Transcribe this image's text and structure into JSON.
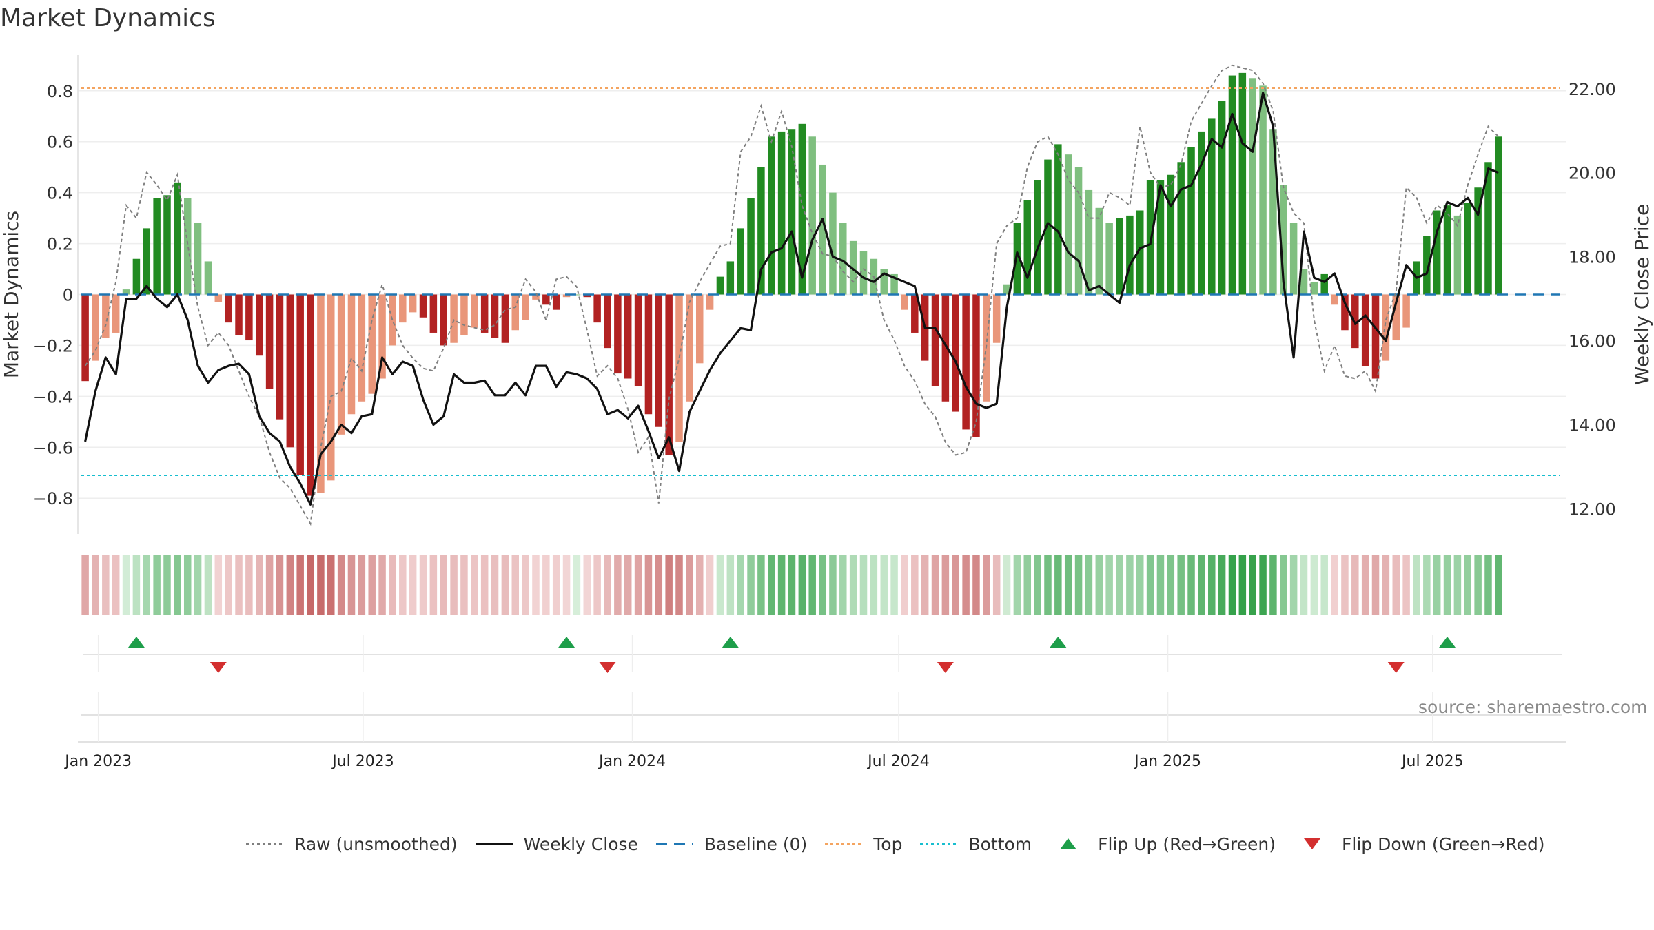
{
  "title": "Market Dynamics",
  "source": "source: sharemaestro.com",
  "chart_data": {
    "type": "bar",
    "title": "Market Dynamics",
    "ylabel": "Market Dynamics",
    "y2label": "Weekly Close Price",
    "ylim": [
      -0.94,
      0.94
    ],
    "y2lim": [
      11.4,
      22.8
    ],
    "yticks": [
      -0.8,
      -0.6,
      -0.4,
      -0.2,
      0,
      0.2,
      0.4,
      0.6,
      0.8
    ],
    "ytick_labels": [
      "−0.8",
      "−0.6",
      "−0.4",
      "−0.2",
      "0",
      "0.2",
      "0.4",
      "0.6",
      "0.8"
    ],
    "y2ticks": [
      12,
      14,
      16,
      18,
      20,
      22
    ],
    "y2tick_labels": [
      "12.00",
      "14.00",
      "16.00",
      "18.00",
      "20.00",
      "22.00"
    ],
    "xticks": [
      "2023-01-01",
      "2023-07-01",
      "2024-01-01",
      "2024-07-01",
      "2025-01-01",
      "2025-07-01"
    ],
    "xtick_labels": [
      "Jan 2023",
      "Jul 2023",
      "Jan 2024",
      "Jul 2024",
      "Jan 2025",
      "Jul 2025"
    ],
    "x_start": "2022-12-18",
    "x_end": "2025-09-30",
    "top_line": 0.81,
    "bottom_line": -0.71,
    "baseline": 0,
    "grid": true,
    "legend_position": "bottom",
    "weeks": [
      "2022-12-23",
      "2022-12-30",
      "2023-01-06",
      "2023-01-13",
      "2023-01-20",
      "2023-01-27",
      "2023-02-03",
      "2023-02-10",
      "2023-02-17",
      "2023-02-24",
      "2023-03-03",
      "2023-03-10",
      "2023-03-17",
      "2023-03-24",
      "2023-03-31",
      "2023-04-07",
      "2023-04-14",
      "2023-04-21",
      "2023-04-28",
      "2023-05-05",
      "2023-05-12",
      "2023-05-19",
      "2023-05-26",
      "2023-06-02",
      "2023-06-09",
      "2023-06-16",
      "2023-06-23",
      "2023-06-30",
      "2023-07-07",
      "2023-07-14",
      "2023-07-21",
      "2023-07-28",
      "2023-08-04",
      "2023-08-11",
      "2023-08-18",
      "2023-08-25",
      "2023-09-01",
      "2023-09-08",
      "2023-09-15",
      "2023-09-22",
      "2023-09-29",
      "2023-10-06",
      "2023-10-13",
      "2023-10-20",
      "2023-10-27",
      "2023-11-03",
      "2023-11-10",
      "2023-11-17",
      "2023-11-24",
      "2023-12-01",
      "2023-12-08",
      "2023-12-15",
      "2023-12-22",
      "2023-12-29",
      "2024-01-05",
      "2024-01-12",
      "2024-01-19",
      "2024-01-26",
      "2024-02-02",
      "2024-02-09",
      "2024-02-16",
      "2024-02-23",
      "2024-03-01",
      "2024-03-08",
      "2024-03-15",
      "2024-03-22",
      "2024-03-29",
      "2024-04-05",
      "2024-04-12",
      "2024-04-19",
      "2024-04-26",
      "2024-05-03",
      "2024-05-10",
      "2024-05-17",
      "2024-05-24",
      "2024-05-31",
      "2024-06-07",
      "2024-06-14",
      "2024-06-21",
      "2024-06-28",
      "2024-07-05",
      "2024-07-12",
      "2024-07-19",
      "2024-07-26",
      "2024-08-02",
      "2024-08-09",
      "2024-08-16",
      "2024-08-23",
      "2024-08-30",
      "2024-09-06",
      "2024-09-13",
      "2024-09-20",
      "2024-09-27",
      "2024-10-04",
      "2024-10-11",
      "2024-10-18",
      "2024-10-25",
      "2024-11-01",
      "2024-11-08",
      "2024-11-15",
      "2024-11-22",
      "2024-11-29",
      "2024-12-06",
      "2024-12-13",
      "2024-12-20",
      "2024-12-27",
      "2025-01-03",
      "2025-01-10",
      "2025-01-17",
      "2025-01-24",
      "2025-01-31",
      "2025-02-07",
      "2025-02-14",
      "2025-02-21",
      "2025-02-28",
      "2025-03-07",
      "2025-03-14",
      "2025-03-21",
      "2025-03-28",
      "2025-04-04",
      "2025-04-11",
      "2025-04-18",
      "2025-04-25",
      "2025-05-02",
      "2025-05-09",
      "2025-05-16",
      "2025-05-23",
      "2025-05-30",
      "2025-06-06",
      "2025-06-13",
      "2025-06-20",
      "2025-06-27",
      "2025-07-04",
      "2025-07-11",
      "2025-07-18",
      "2025-07-25",
      "2025-08-01",
      "2025-08-08",
      "2025-08-15",
      "2025-08-22",
      "2025-08-29",
      "2025-09-05",
      "2025-09-12",
      "2025-09-19"
    ],
    "dynamics": [
      -0.34,
      -0.26,
      -0.17,
      -0.15,
      0.02,
      0.14,
      0.26,
      0.38,
      0.39,
      0.44,
      0.38,
      0.28,
      0.13,
      -0.03,
      -0.11,
      -0.16,
      -0.18,
      -0.24,
      -0.37,
      -0.49,
      -0.6,
      -0.71,
      -0.79,
      -0.78,
      -0.73,
      -0.55,
      -0.47,
      -0.42,
      -0.39,
      -0.33,
      -0.2,
      -0.11,
      -0.07,
      -0.09,
      -0.15,
      -0.2,
      -0.19,
      -0.16,
      -0.13,
      -0.15,
      -0.17,
      -0.19,
      -0.14,
      -0.1,
      -0.02,
      -0.04,
      -0.06,
      -0.01,
      0.0,
      -0.01,
      -0.11,
      -0.21,
      -0.31,
      -0.33,
      -0.36,
      -0.47,
      -0.52,
      -0.63,
      -0.58,
      -0.42,
      -0.27,
      -0.06,
      0.07,
      0.13,
      0.26,
      0.38,
      0.5,
      0.62,
      0.64,
      0.65,
      0.67,
      0.62,
      0.51,
      0.4,
      0.28,
      0.21,
      0.17,
      0.14,
      0.1,
      0.08,
      -0.06,
      -0.15,
      -0.26,
      -0.36,
      -0.42,
      -0.46,
      -0.53,
      -0.56,
      -0.42,
      -0.19,
      0.04,
      0.28,
      0.37,
      0.45,
      0.53,
      0.59,
      0.55,
      0.5,
      0.41,
      0.34,
      0.28,
      0.3,
      0.31,
      0.33,
      0.45,
      0.45,
      0.47,
      0.52,
      0.58,
      0.64,
      0.69,
      0.76,
      0.86,
      0.87,
      0.85,
      0.82,
      0.65,
      0.43,
      0.28,
      0.1,
      0.05,
      0.08,
      -0.04,
      -0.14,
      -0.21,
      -0.28,
      -0.33,
      -0.26,
      -0.18,
      -0.13,
      0.13,
      0.23,
      0.33,
      0.35,
      0.31,
      0.36,
      0.42,
      0.52,
      0.62
    ],
    "raw_unsmoothed": [
      -0.28,
      -0.22,
      -0.12,
      0.05,
      0.35,
      0.3,
      0.48,
      0.43,
      0.37,
      0.47,
      0.2,
      -0.05,
      -0.2,
      -0.15,
      -0.2,
      -0.3,
      -0.4,
      -0.48,
      -0.62,
      -0.72,
      -0.76,
      -0.83,
      -0.9,
      -0.6,
      -0.4,
      -0.38,
      -0.25,
      -0.3,
      -0.1,
      0.04,
      -0.1,
      -0.2,
      -0.25,
      -0.29,
      -0.3,
      -0.21,
      -0.1,
      -0.12,
      -0.13,
      -0.14,
      -0.12,
      -0.06,
      -0.05,
      0.06,
      0.01,
      -0.1,
      0.06,
      0.07,
      0.03,
      -0.14,
      -0.32,
      -0.28,
      -0.33,
      -0.45,
      -0.62,
      -0.56,
      -0.82,
      -0.41,
      -0.25,
      -0.03,
      0.05,
      0.12,
      0.19,
      0.2,
      0.56,
      0.62,
      0.74,
      0.6,
      0.72,
      0.58,
      0.35,
      0.24,
      0.16,
      0.15,
      0.09,
      0.05,
      0.1,
      0.07,
      -0.1,
      -0.18,
      -0.28,
      -0.34,
      -0.43,
      -0.48,
      -0.58,
      -0.63,
      -0.62,
      -0.5,
      -0.2,
      0.2,
      0.27,
      0.3,
      0.5,
      0.6,
      0.62,
      0.55,
      0.45,
      0.4,
      0.3,
      0.3,
      0.4,
      0.38,
      0.35,
      0.66,
      0.48,
      0.42,
      0.43,
      0.51,
      0.68,
      0.75,
      0.82,
      0.88,
      0.9,
      0.89,
      0.88,
      0.83,
      0.72,
      0.42,
      0.32,
      0.28,
      -0.1,
      -0.3,
      -0.2,
      -0.32,
      -0.33,
      -0.3,
      -0.38,
      -0.1,
      0.01,
      0.42,
      0.38,
      0.28,
      0.35,
      0.32,
      0.27,
      0.43,
      0.55,
      0.66,
      0.62
    ],
    "weekly_close": [
      13.6,
      14.8,
      15.6,
      15.2,
      17.0,
      17.0,
      17.3,
      17.0,
      16.8,
      17.1,
      16.5,
      15.4,
      15.0,
      15.3,
      15.4,
      15.45,
      15.2,
      14.2,
      13.8,
      13.6,
      13.0,
      12.6,
      12.1,
      13.3,
      13.6,
      14.0,
      13.8,
      14.2,
      14.25,
      15.6,
      15.2,
      15.5,
      15.4,
      14.6,
      14.0,
      14.2,
      15.2,
      15.0,
      15.0,
      15.05,
      14.7,
      14.7,
      15.0,
      14.7,
      15.4,
      15.4,
      14.9,
      15.25,
      15.2,
      15.1,
      14.85,
      14.25,
      14.35,
      14.15,
      14.45,
      13.85,
      13.2,
      13.7,
      12.9,
      14.3,
      14.8,
      15.3,
      15.7,
      16.0,
      16.3,
      16.25,
      17.7,
      18.1,
      18.2,
      18.6,
      17.5,
      18.4,
      18.9,
      18.0,
      17.9,
      17.7,
      17.5,
      17.4,
      17.6,
      17.5,
      17.4,
      17.3,
      16.3,
      16.3,
      15.9,
      15.5,
      14.9,
      14.5,
      14.4,
      14.5,
      16.8,
      18.1,
      17.5,
      18.2,
      18.8,
      18.6,
      18.1,
      17.9,
      17.2,
      17.3,
      17.1,
      16.9,
      17.8,
      18.2,
      18.3,
      19.7,
      19.2,
      19.6,
      19.7,
      20.2,
      20.8,
      20.6,
      21.4,
      20.7,
      20.5,
      21.9,
      21.1,
      17.4,
      15.6,
      18.6,
      17.5,
      17.4,
      17.6,
      16.9,
      16.4,
      16.6,
      16.3,
      16.0,
      16.9,
      17.8,
      17.5,
      17.6,
      18.6,
      19.3,
      19.2,
      19.4,
      19.0,
      20.1,
      20.0,
      20.5,
      19.7
    ],
    "flip_up": [
      "2023-01-27",
      "2023-11-17",
      "2024-03-08",
      "2024-10-18",
      "2025-07-11"
    ],
    "flip_down": [
      "2023-03-24",
      "2023-12-15",
      "2024-08-02",
      "2025-06-06"
    ],
    "legend": [
      {
        "label": "Raw (unsmoothed)",
        "color": "#7f7f7f",
        "style": "dotted-line"
      },
      {
        "label": "Weekly Close",
        "color": "#111111",
        "style": "solid-line"
      },
      {
        "label": "Baseline (0)",
        "color": "#1f77b4",
        "style": "dashed-line"
      },
      {
        "label": "Top",
        "color": "#f4a460",
        "style": "dotted-line"
      },
      {
        "label": "Bottom",
        "color": "#17becf",
        "style": "dotted-line"
      },
      {
        "label": "Flip Up (Red→Green)",
        "color": "#1e9e4a",
        "style": "triangle-up"
      },
      {
        "label": "Flip Down (Green→Red)",
        "color": "#d32f2f",
        "style": "triangle-down"
      }
    ],
    "colors": {
      "bull_strong": "#228b22",
      "bull_weak": "#7fbf7f",
      "bear_strong": "#b22222",
      "bear_weak": "#e9967a",
      "raw": "#7f7f7f",
      "close": "#111111",
      "baseline": "#1f77b4",
      "top": "#f4a460",
      "bottom": "#17becf",
      "flip_up": "#1e9e4a",
      "flip_down": "#d32f2f"
    }
  }
}
